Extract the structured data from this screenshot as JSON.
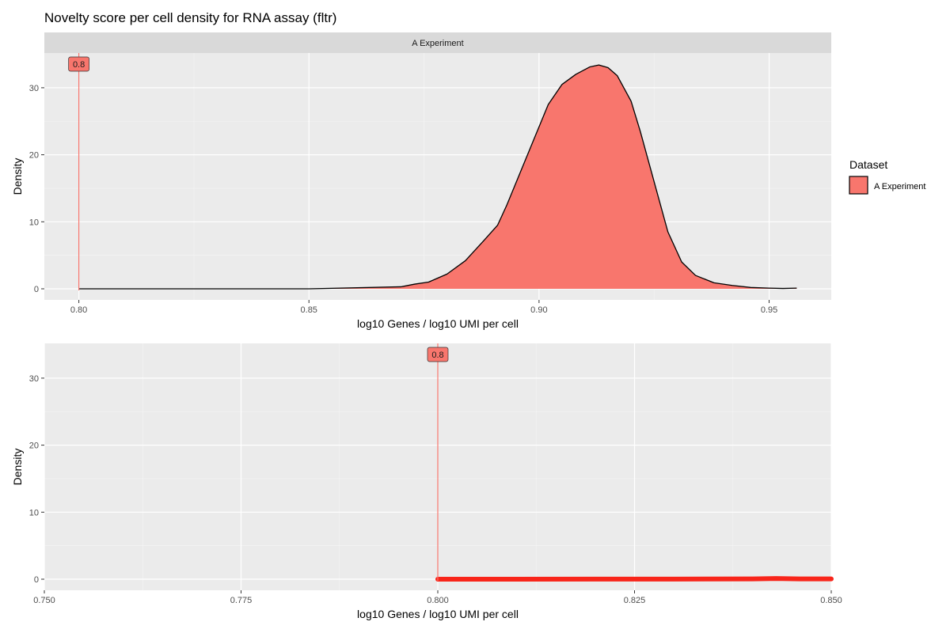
{
  "figure": {
    "title": "Novelty score per cell density for RNA assay (fltr)"
  },
  "legend": {
    "title": "Dataset",
    "entries": [
      {
        "label": "A Experiment",
        "color": "#F8766D"
      }
    ]
  },
  "chart_data": [
    {
      "type": "area",
      "panel": "top",
      "facet_label": "A Experiment",
      "xlabel": "log10 Genes / log10 UMI per cell",
      "ylabel": "Density",
      "xlim": [
        0.8,
        0.956
      ],
      "ylim": [
        0,
        34
      ],
      "x_ticks": [
        0.8,
        0.85,
        0.9,
        0.95
      ],
      "x_tick_labels": [
        "0.80",
        "0.85",
        "0.90",
        "0.95"
      ],
      "y_ticks": [
        0,
        10,
        20,
        30
      ],
      "y_tick_labels": [
        "0",
        "10",
        "20",
        "30"
      ],
      "threshold": {
        "x": 0.8,
        "label": "0.8",
        "color": "#F8766D"
      },
      "series": [
        {
          "name": "A Experiment",
          "fill": "#F8766D",
          "x": [
            0.8,
            0.85,
            0.87,
            0.873,
            0.876,
            0.88,
            0.884,
            0.888,
            0.891,
            0.893,
            0.896,
            0.899,
            0.902,
            0.905,
            0.908,
            0.911,
            0.913,
            0.915,
            0.917,
            0.92,
            0.922,
            0.924,
            0.926,
            0.928,
            0.931,
            0.934,
            0.938,
            0.942,
            0.946,
            0.95,
            0.953,
            0.956
          ],
          "y": [
            0,
            0,
            0.3,
            0.7,
            1.0,
            2.2,
            4.2,
            7.2,
            9.5,
            12.5,
            17.5,
            22.5,
            27.5,
            30.5,
            32.0,
            33.1,
            33.4,
            33.0,
            31.8,
            28.0,
            23.5,
            18.5,
            13.5,
            8.5,
            4.0,
            2.0,
            0.9,
            0.5,
            0.2,
            0.1,
            0.05,
            0.1
          ]
        }
      ]
    },
    {
      "type": "line",
      "panel": "bottom",
      "xlabel": "log10 Genes / log10 UMI per cell",
      "ylabel": "Density",
      "xlim": [
        0.75,
        0.85
      ],
      "ylim": [
        0,
        34
      ],
      "x_ticks": [
        0.75,
        0.775,
        0.8,
        0.825,
        0.85
      ],
      "x_tick_labels": [
        "0.750",
        "0.775",
        "0.800",
        "0.825",
        "0.850"
      ],
      "y_ticks": [
        0,
        10,
        20,
        30
      ],
      "y_tick_labels": [
        "0",
        "10",
        "20",
        "30"
      ],
      "threshold": {
        "x": 0.8,
        "label": "0.8",
        "color": "#F8766D"
      },
      "series": [
        {
          "name": "A Experiment",
          "color": "#F8766D",
          "x": [
            0.8,
            0.81,
            0.82,
            0.83,
            0.84,
            0.843,
            0.846,
            0.85
          ],
          "y": [
            0,
            0,
            0.02,
            0.01,
            0.05,
            0.1,
            0.05,
            0.04
          ]
        }
      ]
    }
  ]
}
